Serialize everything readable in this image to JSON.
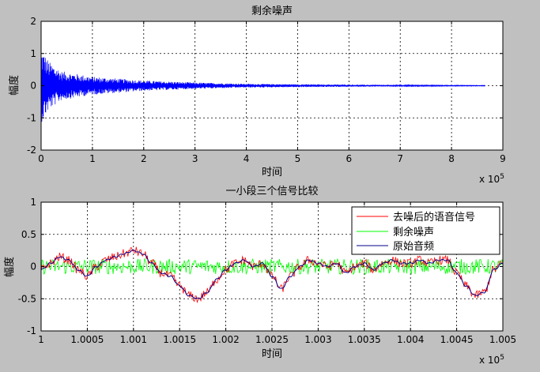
{
  "chart_data": [
    {
      "type": "line",
      "title": "剩余噪声",
      "xlabel": "时间",
      "ylabel": "幅度",
      "xlim": [
        0,
        900000
      ],
      "ylim": [
        -2,
        2
      ],
      "x_ticks": [
        0,
        100000,
        200000,
        300000,
        400000,
        500000,
        600000,
        700000,
        800000,
        900000
      ],
      "x_tick_labels": [
        "0",
        "1",
        "2",
        "3",
        "4",
        "5",
        "6",
        "7",
        "8",
        "9"
      ],
      "x_exponent_label": "x 10",
      "x_exponent_power": "5",
      "y_ticks": [
        -2,
        -1,
        0,
        1,
        2
      ],
      "y_tick_labels": [
        "-2",
        "-1",
        "0",
        "1",
        "2"
      ],
      "grid": true,
      "series": [
        {
          "color": "#0000ff",
          "x_end": 865000,
          "envelope": {
            "x": [
              0,
              5000,
              15000,
              40000,
              100000,
              200000,
              300000,
              400000,
              500000,
              600000,
              700000,
              800000,
              865000
            ],
            "amp": [
              1.15,
              1.05,
              0.75,
              0.45,
              0.28,
              0.16,
              0.1,
              0.06,
              0.045,
              0.035,
              0.02,
              0.012,
              0.01
            ]
          }
        }
      ]
    },
    {
      "type": "line",
      "title": "一小段三个信号比较",
      "xlabel": "时间",
      "ylabel": "幅度",
      "xlim": [
        100000,
        100500
      ],
      "ylim": [
        -1,
        1
      ],
      "x_ticks": [
        100000,
        100050,
        100100,
        100150,
        100200,
        100250,
        100300,
        100350,
        100400,
        100450,
        100500
      ],
      "x_tick_labels": [
        "1",
        "1.0005",
        "1.001",
        "1.0015",
        "1.002",
        "1.0025",
        "1.003",
        "1.0035",
        "1.004",
        "1.0045",
        "1.005"
      ],
      "x_exponent_label": "x 10",
      "x_exponent_power": "5",
      "y_ticks": [
        -1,
        -0.5,
        0,
        0.5,
        1
      ],
      "y_tick_labels": [
        "-1",
        "-0.5",
        "0",
        "0.5",
        "1"
      ],
      "grid": true,
      "legend": "top-right",
      "series": [
        {
          "name": "去噪后的语音信号",
          "color": "#ff0000"
        },
        {
          "name": "剩余噪声",
          "color": "#00ff00",
          "amplitude": 0.12
        },
        {
          "name": "原始音频",
          "color": "#00008b",
          "x": [
            100000,
            100010,
            100020,
            100030,
            100040,
            100050,
            100060,
            100070,
            100080,
            100090,
            100100,
            100110,
            100120,
            100130,
            100140,
            100150,
            100160,
            100170,
            100180,
            100190,
            100200,
            100210,
            100220,
            100230,
            100240,
            100250,
            100260,
            100270,
            100280,
            100290,
            100300,
            100310,
            100320,
            100330,
            100340,
            100350,
            100360,
            100370,
            100380,
            100390,
            100400,
            100410,
            100420,
            100430,
            100440,
            100450,
            100460,
            100470,
            100480,
            100490,
            100500
          ],
          "y": [
            -0.05,
            0.05,
            0.15,
            0.1,
            -0.05,
            -0.15,
            0.0,
            0.1,
            0.15,
            0.2,
            0.25,
            0.2,
            0.05,
            -0.1,
            -0.15,
            -0.3,
            -0.45,
            -0.5,
            -0.4,
            -0.2,
            -0.05,
            0.05,
            0.1,
            0.0,
            0.05,
            -0.15,
            -0.35,
            -0.15,
            0.0,
            0.1,
            0.05,
            0.0,
            0.05,
            -0.1,
            0.0,
            0.05,
            -0.05,
            0.05,
            0.1,
            0.05,
            0.05,
            0.1,
            0.05,
            0.1,
            0.1,
            -0.1,
            -0.3,
            -0.45,
            -0.4,
            -0.05,
            0.05
          ]
        }
      ]
    }
  ]
}
